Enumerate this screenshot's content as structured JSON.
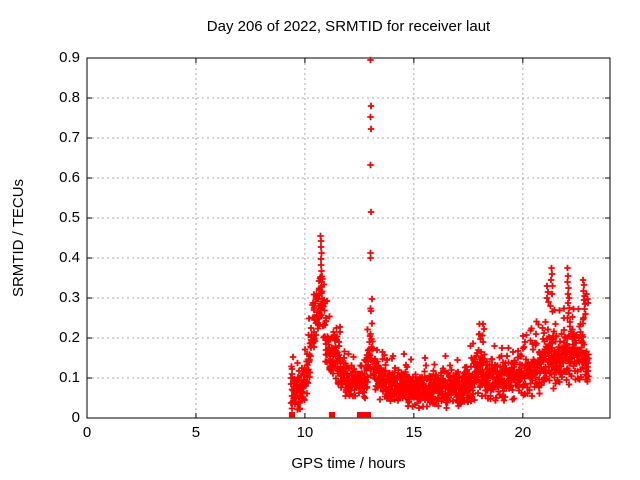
{
  "chart_data": {
    "type": "scatter",
    "title": "Day 206 of 2022, SRMTID for receiver laut",
    "xlabel": "GPS time / hours",
    "ylabel": "SRMTID / TECUs",
    "xlim": [
      0,
      24
    ],
    "ylim": [
      0,
      0.9
    ],
    "xticks": {
      "values": [
        0,
        5,
        10,
        15,
        20
      ],
      "labels": [
        "0",
        "5",
        "10",
        "15",
        "20"
      ]
    },
    "yticks": {
      "values": [
        0,
        0.1,
        0.2,
        0.3,
        0.4,
        0.5,
        0.6,
        0.7,
        0.8,
        0.9
      ],
      "labels": [
        "0",
        "0.1",
        "0.2",
        "0.3",
        "0.4",
        "0.5",
        "0.6",
        "0.7",
        "0.8",
        "0.9"
      ]
    },
    "grid": {
      "on": true,
      "style": "dashed",
      "color": "#a8a8a8"
    },
    "marker": "plus",
    "marker_color": "#ff0000",
    "background_color": "#ffffff",
    "data_x_range": [
      9.35,
      23.02
    ],
    "band_points_n": 1550,
    "seed": 2062022,
    "band_profile": [
      [
        9.35,
        0.085,
        0.045
      ],
      [
        9.55,
        0.055,
        0.035
      ],
      [
        9.75,
        0.065,
        0.035
      ],
      [
        10.0,
        0.085,
        0.04
      ],
      [
        10.2,
        0.14,
        0.055
      ],
      [
        10.35,
        0.22,
        0.06
      ],
      [
        10.5,
        0.26,
        0.055
      ],
      [
        10.65,
        0.29,
        0.08
      ],
      [
        10.8,
        0.29,
        0.1
      ],
      [
        10.95,
        0.2,
        0.06
      ],
      [
        11.15,
        0.16,
        0.05
      ],
      [
        11.4,
        0.155,
        0.055
      ],
      [
        11.65,
        0.12,
        0.045
      ],
      [
        11.9,
        0.095,
        0.035
      ],
      [
        12.3,
        0.085,
        0.035
      ],
      [
        12.7,
        0.095,
        0.04
      ],
      [
        12.95,
        0.13,
        0.05
      ],
      [
        13.05,
        0.23,
        0.1
      ],
      [
        13.15,
        0.13,
        0.05
      ],
      [
        13.4,
        0.095,
        0.035
      ],
      [
        13.8,
        0.085,
        0.035
      ],
      [
        14.3,
        0.08,
        0.035
      ],
      [
        14.8,
        0.075,
        0.035
      ],
      [
        15.2,
        0.065,
        0.03
      ],
      [
        15.7,
        0.07,
        0.035
      ],
      [
        16.2,
        0.075,
        0.035
      ],
      [
        16.7,
        0.08,
        0.04
      ],
      [
        17.2,
        0.075,
        0.035
      ],
      [
        17.7,
        0.09,
        0.045
      ],
      [
        18.05,
        0.125,
        0.055
      ],
      [
        18.35,
        0.1,
        0.045
      ],
      [
        18.8,
        0.095,
        0.04
      ],
      [
        19.3,
        0.1,
        0.045
      ],
      [
        19.8,
        0.105,
        0.045
      ],
      [
        20.3,
        0.115,
        0.05
      ],
      [
        20.8,
        0.13,
        0.055
      ],
      [
        21.2,
        0.15,
        0.06
      ],
      [
        21.6,
        0.145,
        0.055
      ],
      [
        22.0,
        0.16,
        0.06
      ],
      [
        22.4,
        0.15,
        0.055
      ],
      [
        22.75,
        0.17,
        0.06
      ],
      [
        23.02,
        0.125,
        0.05
      ]
    ],
    "outlier_points": [
      [
        13.02,
        0.895
      ],
      [
        13.03,
        0.78
      ],
      [
        13.02,
        0.752
      ],
      [
        13.03,
        0.722
      ],
      [
        13.02,
        0.633
      ],
      [
        13.03,
        0.515
      ],
      [
        13.02,
        0.413
      ],
      [
        13.0,
        0.4
      ],
      [
        10.72,
        0.455
      ],
      [
        10.74,
        0.443
      ],
      [
        10.73,
        0.428
      ],
      [
        10.75,
        0.413
      ],
      [
        10.73,
        0.398
      ],
      [
        10.74,
        0.382
      ],
      [
        10.76,
        0.368
      ],
      [
        10.72,
        0.353
      ],
      [
        10.75,
        0.34
      ],
      [
        10.73,
        0.327
      ],
      [
        10.76,
        0.312
      ],
      [
        18.18,
        0.235
      ],
      [
        18.21,
        0.222
      ],
      [
        18.15,
        0.206
      ],
      [
        18.17,
        0.19
      ],
      [
        18.0,
        0.21
      ],
      [
        18.06,
        0.198
      ],
      [
        21.12,
        0.33
      ],
      [
        21.15,
        0.315
      ],
      [
        21.1,
        0.3
      ],
      [
        21.18,
        0.29
      ],
      [
        21.32,
        0.375
      ],
      [
        21.34,
        0.36
      ],
      [
        21.3,
        0.345
      ],
      [
        21.36,
        0.33
      ],
      [
        21.33,
        0.31
      ],
      [
        21.28,
        0.28
      ],
      [
        21.45,
        0.27
      ],
      [
        22.05,
        0.375
      ],
      [
        22.08,
        0.355
      ],
      [
        22.06,
        0.34
      ],
      [
        22.1,
        0.325
      ],
      [
        22.08,
        0.31
      ],
      [
        22.12,
        0.3
      ],
      [
        22.07,
        0.288
      ],
      [
        22.14,
        0.275
      ],
      [
        22.1,
        0.262
      ],
      [
        22.06,
        0.25
      ],
      [
        22.16,
        0.24
      ],
      [
        22.76,
        0.345
      ],
      [
        22.8,
        0.332
      ],
      [
        22.78,
        0.318
      ],
      [
        22.84,
        0.305
      ],
      [
        22.8,
        0.295
      ],
      [
        22.86,
        0.285
      ],
      [
        22.82,
        0.272
      ],
      [
        22.88,
        0.26
      ],
      [
        22.79,
        0.25
      ],
      [
        22.92,
        0.31
      ],
      [
        22.96,
        0.298
      ],
      [
        22.99,
        0.288
      ],
      [
        15.06,
        0.032
      ],
      [
        16.12,
        0.03
      ],
      [
        17.05,
        0.03
      ],
      [
        11.45,
        0.225
      ],
      [
        12.0,
        0.16
      ],
      [
        13.3,
        0.17
      ],
      [
        13.55,
        0.165
      ],
      [
        14.05,
        0.155
      ],
      [
        14.55,
        0.16
      ],
      [
        15.5,
        0.15
      ],
      [
        16.45,
        0.155
      ],
      [
        17.0,
        0.145
      ],
      [
        19.05,
        0.175
      ],
      [
        19.55,
        0.165
      ],
      [
        20.1,
        0.19
      ],
      [
        20.6,
        0.21
      ],
      [
        20.9,
        0.225
      ],
      [
        21.05,
        0.24
      ],
      [
        21.5,
        0.235
      ],
      [
        21.9,
        0.22
      ],
      [
        22.3,
        0.21
      ],
      [
        10.1,
        0.16
      ],
      [
        11.8,
        0.15
      ]
    ],
    "zero_markers_x": [
      9.43,
      11.25,
      12.52,
      12.64,
      12.76,
      12.88
    ]
  }
}
